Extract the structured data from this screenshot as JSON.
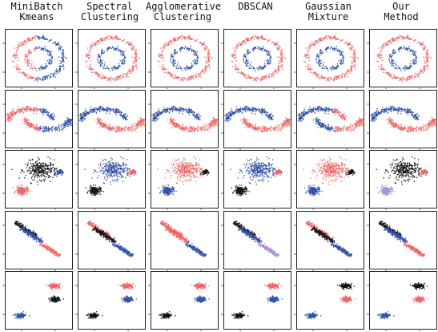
{
  "figure": {
    "methods": [
      {
        "id": "minibatch-kmeans",
        "title": "MiniBatch\nKmeans"
      },
      {
        "id": "spectral-clustering",
        "title": "Spectral\nClustering"
      },
      {
        "id": "agglomerative-clustering",
        "title": "Agglomerative\nClustering"
      },
      {
        "id": "dbscan",
        "title": "DBSCAN"
      },
      {
        "id": "gaussian-mixture",
        "title": "Gaussian\nMixture"
      },
      {
        "id": "our-method",
        "title": "Our\nMethod"
      }
    ],
    "datasets": [
      "noisy-circles",
      "noisy-moons",
      "blobs-varied",
      "anisotropic-blobs",
      "separated-blobs"
    ]
  },
  "colors": {
    "blue": "#2f4fa8",
    "red": "#f06464",
    "black": "#111111",
    "purple": "#a98fd6"
  },
  "chart_data": {
    "type": "scatter",
    "title": "",
    "grid": false,
    "legend": "none",
    "rows": [
      {
        "dataset": "noisy-circles",
        "clusters": [
          {
            "kind": "ring",
            "cx": 0,
            "cy": 0,
            "radius": 1.0,
            "spread": 0.05,
            "n": 300
          },
          {
            "kind": "ring",
            "cx": 0,
            "cy": 0,
            "radius": 0.5,
            "spread": 0.05,
            "n": 160
          }
        ],
        "assignment_mode": "by_method",
        "assignments": {
          "minibatch-kmeans": {
            "mode": "half_split",
            "left": "red",
            "right": "blue",
            "split_x": -0.1
          },
          "spectral-clustering": {
            "mode": "cluster",
            "colors": [
              "red",
              "blue"
            ]
          },
          "agglomerative-clustering": {
            "mode": "cluster",
            "colors": [
              "red",
              "blue"
            ]
          },
          "dbscan": {
            "mode": "cluster",
            "colors": [
              "red",
              "blue"
            ]
          },
          "gaussian-mixture": {
            "mode": "cluster",
            "colors": [
              "red",
              "blue"
            ]
          },
          "our-method": {
            "mode": "cluster",
            "colors": [
              "red",
              "blue"
            ]
          }
        }
      },
      {
        "dataset": "noisy-moons",
        "clusters": [
          {
            "kind": "moon_upper",
            "cx": -0.35,
            "cy": 0.25,
            "radius": 0.9,
            "spread": 0.07,
            "n": 260
          },
          {
            "kind": "moon_lower",
            "cx": 0.35,
            "cy": -0.25,
            "radius": 0.9,
            "spread": 0.07,
            "n": 260
          }
        ],
        "assignments": {
          "minibatch-kmeans": {
            "mode": "half_split",
            "left": "red",
            "right": "blue",
            "split_x": 0.0
          },
          "spectral-clustering": {
            "mode": "cluster",
            "colors": [
              "blue",
              "red"
            ]
          },
          "agglomerative-clustering": {
            "mode": "cluster",
            "colors": [
              "blue",
              "red"
            ]
          },
          "dbscan": {
            "mode": "cluster",
            "colors": [
              "blue",
              "red"
            ]
          },
          "gaussian-mixture": {
            "mode": "half_split",
            "left": "blue",
            "right": "red",
            "split_x": 0.15
          },
          "our-method": {
            "mode": "cluster",
            "colors": [
              "blue",
              "red"
            ]
          }
        }
      },
      {
        "dataset": "blobs-varied",
        "clusters": [
          {
            "kind": "blob",
            "cx": 0.1,
            "cy": 0.45,
            "sx": 0.32,
            "sy": 0.22,
            "n": 300
          },
          {
            "kind": "blob",
            "cx": -0.7,
            "cy": -0.55,
            "sx": 0.12,
            "sy": 0.1,
            "n": 180
          },
          {
            "kind": "blob",
            "cx": 0.82,
            "cy": 0.35,
            "sx": 0.06,
            "sy": 0.06,
            "n": 60
          }
        ],
        "assignments": {
          "minibatch-kmeans": {
            "mode": "cluster",
            "colors": [
              "black",
              "red",
              "blue"
            ]
          },
          "spectral-clustering": {
            "mode": "cluster",
            "colors": [
              "blue",
              "black",
              "red"
            ]
          },
          "agglomerative-clustering": {
            "mode": "cluster",
            "colors": [
              "red",
              "blue",
              "black"
            ]
          },
          "dbscan": {
            "mode": "cluster",
            "colors": [
              "blue",
              "black",
              "red"
            ]
          },
          "gaussian-mixture": {
            "mode": "cluster",
            "colors": [
              "red",
              "blue",
              "black"
            ]
          },
          "our-method": {
            "mode": "cluster",
            "colors": [
              "black",
              "purple",
              "red"
            ]
          }
        }
      },
      {
        "dataset": "anisotropic-blobs",
        "clusters": [
          {
            "kind": "band",
            "cx": -0.55,
            "cy": 0.55,
            "len": 0.55,
            "width": 0.05,
            "angle": -38,
            "n": 170
          },
          {
            "kind": "band",
            "cx": -0.3,
            "cy": 0.25,
            "len": 0.55,
            "width": 0.05,
            "angle": -38,
            "n": 170
          },
          {
            "kind": "band",
            "cx": 0.45,
            "cy": -0.45,
            "len": 0.5,
            "width": 0.05,
            "angle": -38,
            "n": 170
          }
        ],
        "assignments": {
          "minibatch-kmeans": {
            "mode": "cluster",
            "colors": [
              "black",
              "blue",
              "red"
            ]
          },
          "spectral-clustering": {
            "mode": "cluster",
            "colors": [
              "red",
              "black",
              "blue"
            ]
          },
          "agglomerative-clustering": {
            "mode": "cluster",
            "colors": [
              "red",
              "red",
              "blue"
            ]
          },
          "dbscan": {
            "mode": "cluster",
            "colors": [
              "black",
              "blue",
              "purple"
            ]
          },
          "gaussian-mixture": {
            "mode": "cluster",
            "colors": [
              "red",
              "black",
              "blue"
            ]
          },
          "our-method": {
            "mode": "cluster",
            "colors": [
              "black",
              "blue",
              "red"
            ]
          }
        }
      },
      {
        "dataset": "separated-blobs",
        "clusters": [
          {
            "kind": "blob",
            "cx": 0.65,
            "cy": 0.7,
            "sx": 0.12,
            "sy": 0.06,
            "n": 130
          },
          {
            "kind": "blob",
            "cx": 0.65,
            "cy": 0.05,
            "sx": 0.1,
            "sy": 0.06,
            "n": 130
          },
          {
            "kind": "blob",
            "cx": -0.75,
            "cy": -0.75,
            "sx": 0.1,
            "sy": 0.06,
            "n": 130
          }
        ],
        "assignments": {
          "minibatch-kmeans": {
            "mode": "cluster",
            "colors": [
              "red",
              "black",
              "blue"
            ]
          },
          "spectral-clustering": {
            "mode": "cluster",
            "colors": [
              "red",
              "blue",
              "black"
            ]
          },
          "agglomerative-clustering": {
            "mode": "cluster",
            "colors": [
              "red",
              "blue",
              "black"
            ]
          },
          "dbscan": {
            "mode": "cluster",
            "colors": [
              "red",
              "blue",
              "black"
            ]
          },
          "gaussian-mixture": {
            "mode": "cluster",
            "colors": [
              "black",
              "red",
              "blue"
            ]
          },
          "our-method": {
            "mode": "cluster",
            "colors": [
              "black",
              "red",
              "blue"
            ]
          }
        }
      }
    ]
  }
}
